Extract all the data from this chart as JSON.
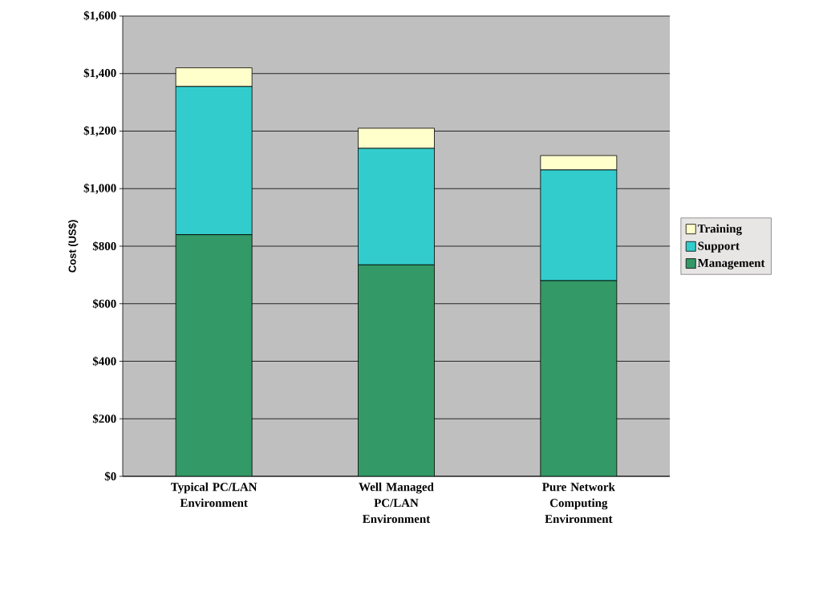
{
  "chart_data": {
    "type": "bar",
    "stacked": true,
    "ylabel": "Cost (US$)",
    "categories": [
      "Typical PC/LAN Environment",
      "Well Managed PC/LAN Environment",
      "Pure Network Computing Environment"
    ],
    "series": [
      {
        "name": "Management",
        "color": "#339966",
        "values": [
          840,
          735,
          680
        ]
      },
      {
        "name": "Support",
        "color": "#33cccc",
        "values": [
          515,
          405,
          385
        ]
      },
      {
        "name": "Training",
        "color": "#ffffcc",
        "values": [
          65,
          70,
          50
        ]
      }
    ],
    "ylim": [
      0,
      1600
    ],
    "yticks": [
      {
        "value": 0,
        "label": "$0"
      },
      {
        "value": 200,
        "label": "$200"
      },
      {
        "value": 400,
        "label": "$400"
      },
      {
        "value": 600,
        "label": "$600"
      },
      {
        "value": 800,
        "label": "$800"
      },
      {
        "value": 1000,
        "label": "$1,000"
      },
      {
        "value": 1200,
        "label": "$1,200"
      },
      {
        "value": 1400,
        "label": "$1,400"
      },
      {
        "value": 1600,
        "label": "$1,600"
      }
    ],
    "grid": "y",
    "legend": "right"
  }
}
